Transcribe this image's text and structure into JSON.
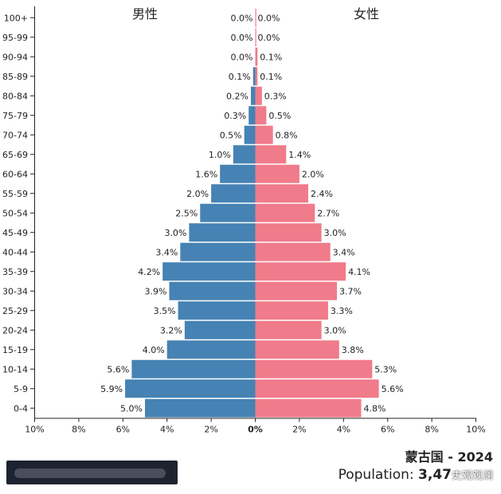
{
  "chart_data": {
    "type": "bar",
    "orientation": "horizontal-population-pyramid",
    "categories": [
      "100+",
      "95-99",
      "90-94",
      "85-89",
      "80-84",
      "75-79",
      "70-74",
      "65-69",
      "60-64",
      "55-59",
      "50-54",
      "45-49",
      "40-44",
      "35-39",
      "30-34",
      "25-29",
      "20-24",
      "15-19",
      "10-14",
      "5-9",
      "0-4"
    ],
    "series": [
      {
        "name": "男性",
        "color": "#4682b4",
        "values": [
          0.0,
          0.0,
          0.0,
          0.1,
          0.2,
          0.3,
          0.5,
          1.0,
          1.6,
          2.0,
          2.5,
          3.0,
          3.4,
          4.2,
          3.9,
          3.5,
          3.2,
          4.0,
          5.6,
          5.9,
          5.0
        ],
        "labels": [
          "0.0%",
          "0.0%",
          "0.0%",
          "0.1%",
          "0.2%",
          "0.3%",
          "0.5%",
          "1.0%",
          "1.6%",
          "2.0%",
          "2.5%",
          "3.0%",
          "3.4%",
          "4.2%",
          "3.9%",
          "3.5%",
          "3.2%",
          "4.0%",
          "5.6%",
          "5.9%",
          "5.0%"
        ]
      },
      {
        "name": "女性",
        "color": "#f07b8a",
        "values": [
          0.0,
          0.0,
          0.1,
          0.1,
          0.3,
          0.5,
          0.8,
          1.4,
          2.0,
          2.4,
          2.7,
          3.0,
          3.4,
          4.1,
          3.7,
          3.3,
          3.0,
          3.8,
          5.3,
          5.6,
          4.8
        ],
        "labels": [
          "0.0%",
          "0.0%",
          "0.1%",
          "0.1%",
          "0.3%",
          "0.5%",
          "0.8%",
          "1.4%",
          "2.0%",
          "2.4%",
          "2.7%",
          "3.0%",
          "3.4%",
          "4.1%",
          "3.7%",
          "3.3%",
          "3.0%",
          "3.8%",
          "5.3%",
          "5.6%",
          "4.8%"
        ]
      }
    ],
    "xlim": [
      -10,
      10
    ],
    "xticks": [
      "10%",
      "8%",
      "6%",
      "4%",
      "2%",
      "0%",
      "2%",
      "4%",
      "6%",
      "8%",
      "10%"
    ],
    "title": "蒙古国 - 2024",
    "population_label": "Population: ",
    "population_value": "3,47",
    "watermark": "史观观澜",
    "grid": false
  }
}
